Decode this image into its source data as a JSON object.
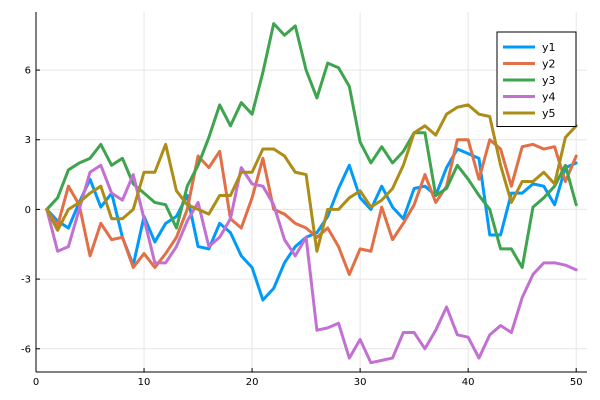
{
  "chart_data": {
    "type": "line",
    "title": "",
    "xlabel": "",
    "ylabel": "",
    "xlim": [
      0,
      51
    ],
    "ylim": [
      -7,
      8.5
    ],
    "x_ticks": [
      0,
      10,
      20,
      30,
      40,
      50
    ],
    "y_ticks": [
      -6,
      -3,
      0,
      3,
      6
    ],
    "grid": true,
    "legend_position": "top-right",
    "x": [
      1,
      2,
      3,
      4,
      5,
      6,
      7,
      8,
      9,
      10,
      11,
      12,
      13,
      14,
      15,
      16,
      17,
      18,
      19,
      20,
      21,
      22,
      23,
      24,
      25,
      26,
      27,
      28,
      29,
      30,
      31,
      32,
      33,
      34,
      35,
      36,
      37,
      38,
      39,
      40,
      41,
      42,
      43,
      44,
      45,
      46,
      47,
      48,
      49,
      50
    ],
    "series": [
      {
        "name": "y1",
        "color": "#009AFA",
        "values": [
          0,
          -0.5,
          -0.8,
          0.3,
          1.3,
          0.1,
          0.7,
          -1.2,
          -2.4,
          -0.3,
          -1.4,
          -0.6,
          -0.3,
          0.6,
          -1.6,
          -1.7,
          -0.6,
          -1.0,
          -2.0,
          -2.5,
          -3.9,
          -3.4,
          -2.3,
          -1.6,
          -1.2,
          -1.0,
          -0.3,
          0.9,
          1.9,
          0.5,
          0.0,
          1.0,
          0.1,
          -0.4,
          0.9,
          1.0,
          0.6,
          1.8,
          2.6,
          2.4,
          2.2,
          -1.1,
          -1.1,
          0.7,
          0.7,
          1.1,
          1.0,
          0.2,
          1.8,
          2.0
        ]
      },
      {
        "name": "y2",
        "color": "#E36F47",
        "values": [
          0,
          -0.7,
          1.0,
          0.2,
          -2.0,
          -0.6,
          -1.3,
          -1.2,
          -2.5,
          -1.9,
          -2.5,
          -1.9,
          -1.2,
          0.0,
          2.3,
          1.8,
          2.5,
          -0.4,
          -0.8,
          0.5,
          2.2,
          0.0,
          -0.2,
          -0.6,
          -0.8,
          -1.2,
          -0.8,
          -1.6,
          -2.8,
          -1.7,
          -1.8,
          0.1,
          -1.3,
          -0.6,
          0.2,
          1.5,
          0.3,
          1.0,
          3.0,
          3.0,
          1.3,
          3.0,
          2.6,
          1.0,
          2.7,
          2.8,
          2.6,
          2.7,
          1.2,
          2.3
        ]
      },
      {
        "name": "y3",
        "color": "#3EA44E",
        "values": [
          0,
          0.5,
          1.7,
          2.0,
          2.2,
          2.8,
          1.9,
          2.2,
          1.1,
          0.7,
          0.3,
          0.2,
          -0.8,
          1.0,
          1.9,
          3.1,
          4.5,
          3.6,
          4.6,
          4.1,
          5.9,
          8.0,
          7.5,
          7.9,
          6.0,
          4.8,
          6.3,
          6.1,
          5.3,
          2.9,
          2.0,
          2.7,
          2.0,
          2.5,
          3.3,
          3.3,
          0.6,
          0.9,
          1.9,
          1.3,
          0.6,
          0.0,
          -1.7,
          -1.7,
          -2.5,
          0.1,
          0.5,
          1.0,
          1.9,
          0.2
        ]
      },
      {
        "name": "y4",
        "color": "#C271D2",
        "values": [
          0,
          -1.8,
          -1.6,
          0.0,
          1.6,
          1.9,
          0.7,
          0.4,
          1.5,
          -0.4,
          -2.3,
          -2.3,
          -1.6,
          -0.5,
          0.3,
          -1.6,
          -1.2,
          -0.4,
          1.8,
          1.1,
          1.0,
          0.2,
          -1.3,
          -2.0,
          -1.2,
          -5.2,
          -5.1,
          -4.9,
          -6.4,
          -5.6,
          -6.6,
          -6.5,
          -6.4,
          -5.3,
          -5.3,
          -6.0,
          -5.2,
          -4.2,
          -5.4,
          -5.5,
          -6.4,
          -5.4,
          -5.0,
          -5.3,
          -3.8,
          -2.8,
          -2.3,
          -2.3,
          -2.4,
          -2.6
        ]
      },
      {
        "name": "y5",
        "color": "#AC8D18",
        "values": [
          0,
          -0.9,
          0.0,
          0.3,
          0.7,
          1.0,
          -0.4,
          -0.4,
          0.0,
          1.6,
          1.6,
          2.8,
          0.8,
          0.2,
          0.0,
          -0.2,
          0.6,
          0.6,
          1.6,
          1.6,
          2.6,
          2.6,
          2.3,
          1.6,
          1.5,
          -1.8,
          0.0,
          0.0,
          0.5,
          0.8,
          0.1,
          0.4,
          0.9,
          1.9,
          3.3,
          3.6,
          3.2,
          4.1,
          4.4,
          4.5,
          4.1,
          4.0,
          1.9,
          0.3,
          1.2,
          1.2,
          1.6,
          1.1,
          3.1,
          3.6
        ]
      }
    ]
  }
}
